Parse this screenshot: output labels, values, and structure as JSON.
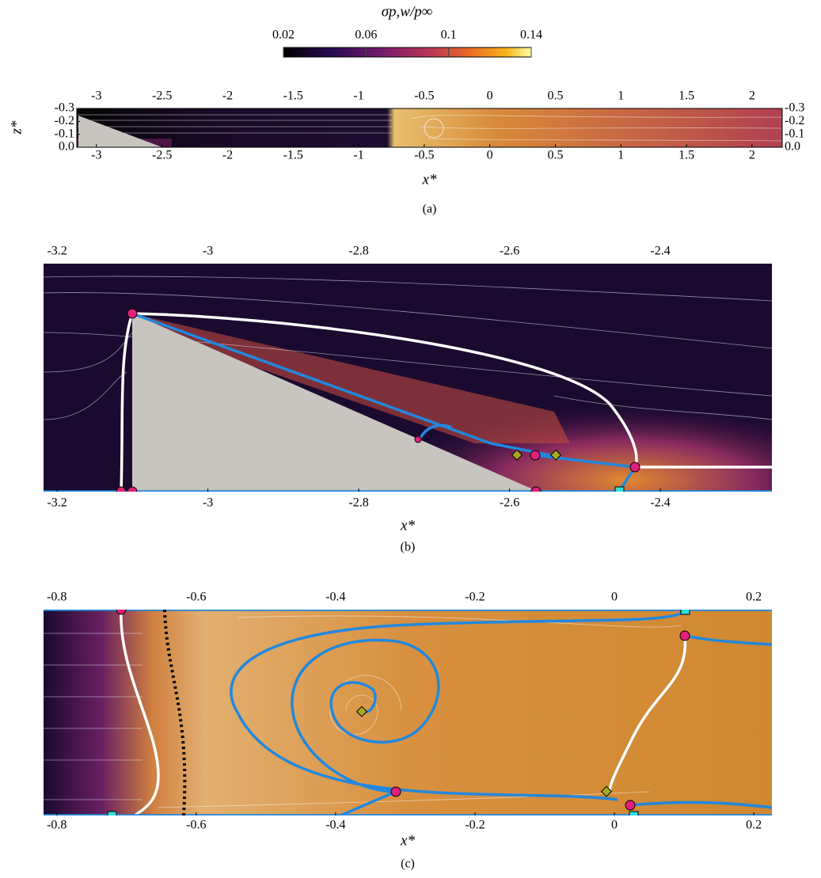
{
  "chart_data": [
    {
      "type": "colorbar",
      "title": "σp,w/p∞",
      "xlim": [
        0.02,
        0.14
      ],
      "xticks": [
        0.02,
        0.06,
        0.1,
        0.14
      ]
    },
    {
      "type": "contour",
      "xlim": [
        -3.15,
        2.23
      ],
      "xticks": [
        -3,
        -2.5,
        -2,
        -1.5,
        -1,
        -0.5,
        0,
        0.5,
        1,
        1.5,
        2
      ],
      "ylim": [
        -0.3,
        0
      ],
      "yticks": [
        -0.3,
        -0.2,
        -0.1,
        {
          "value": 0,
          "label": "0.0"
        }
      ],
      "xlabel": "x*",
      "ylabel": "z*",
      "caption": "(a)"
    },
    {
      "type": "contour",
      "xlim": [
        -3.218,
        -2.252
      ],
      "xticks": [
        -3.2,
        -3,
        -2.8,
        -2.6,
        -2.4
      ],
      "xlabel": "x*",
      "caption": "(b)"
    },
    {
      "type": "contour",
      "xlim": [
        -0.819,
        0.226
      ],
      "xticks": [
        -0.8,
        -0.6,
        -0.4,
        -0.2,
        0,
        0.2
      ],
      "xlabel": "x*",
      "caption": "(c)"
    }
  ]
}
